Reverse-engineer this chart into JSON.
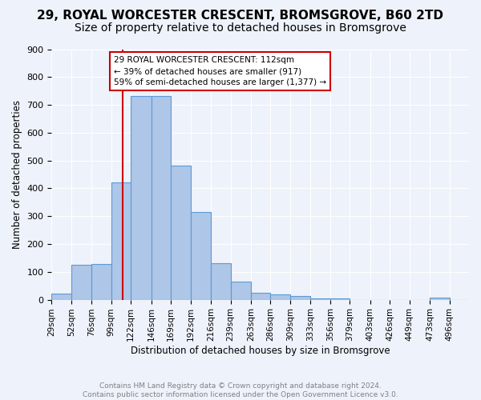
{
  "title": "29, ROYAL WORCESTER CRESCENT, BROMSGROVE, B60 2TD",
  "subtitle": "Size of property relative to detached houses in Bromsgrove",
  "xlabel": "Distribution of detached houses by size in Bromsgrove",
  "ylabel": "Number of detached properties",
  "footer_line1": "Contains HM Land Registry data © Crown copyright and database right 2024.",
  "footer_line2": "Contains public sector information licensed under the Open Government Licence v3.0.",
  "bin_labels": [
    "29sqm",
    "52sqm",
    "76sqm",
    "99sqm",
    "122sqm",
    "146sqm",
    "169sqm",
    "192sqm",
    "216sqm",
    "239sqm",
    "263sqm",
    "286sqm",
    "309sqm",
    "333sqm",
    "356sqm",
    "379sqm",
    "403sqm",
    "426sqm",
    "449sqm",
    "473sqm",
    "496sqm"
  ],
  "bin_edges": [
    29,
    52,
    76,
    99,
    122,
    146,
    169,
    192,
    216,
    239,
    263,
    286,
    309,
    333,
    356,
    379,
    403,
    426,
    449,
    473,
    496,
    519
  ],
  "counts": [
    22,
    125,
    127,
    420,
    733,
    733,
    482,
    315,
    130,
    65,
    25,
    18,
    12,
    5,
    5,
    0,
    0,
    0,
    0,
    8,
    0
  ],
  "bar_color": "#aec6e8",
  "bar_edge_color": "#5b9bd5",
  "property_line_x": 112,
  "annotation_text_line1": "29 ROYAL WORCESTER CRESCENT: 112sqm",
  "annotation_text_line2": "← 39% of detached houses are smaller (917)",
  "annotation_text_line3": "59% of semi-detached houses are larger (1,377) →",
  "annotation_box_color": "#cc0000",
  "ylim": [
    0,
    900
  ],
  "yticks": [
    0,
    100,
    200,
    300,
    400,
    500,
    600,
    700,
    800,
    900
  ],
  "xlim_left": 29,
  "xlim_right": 519,
  "bg_color": "#eef2fb",
  "grid_color": "#ffffff",
  "title_fontsize": 11,
  "subtitle_fontsize": 10
}
